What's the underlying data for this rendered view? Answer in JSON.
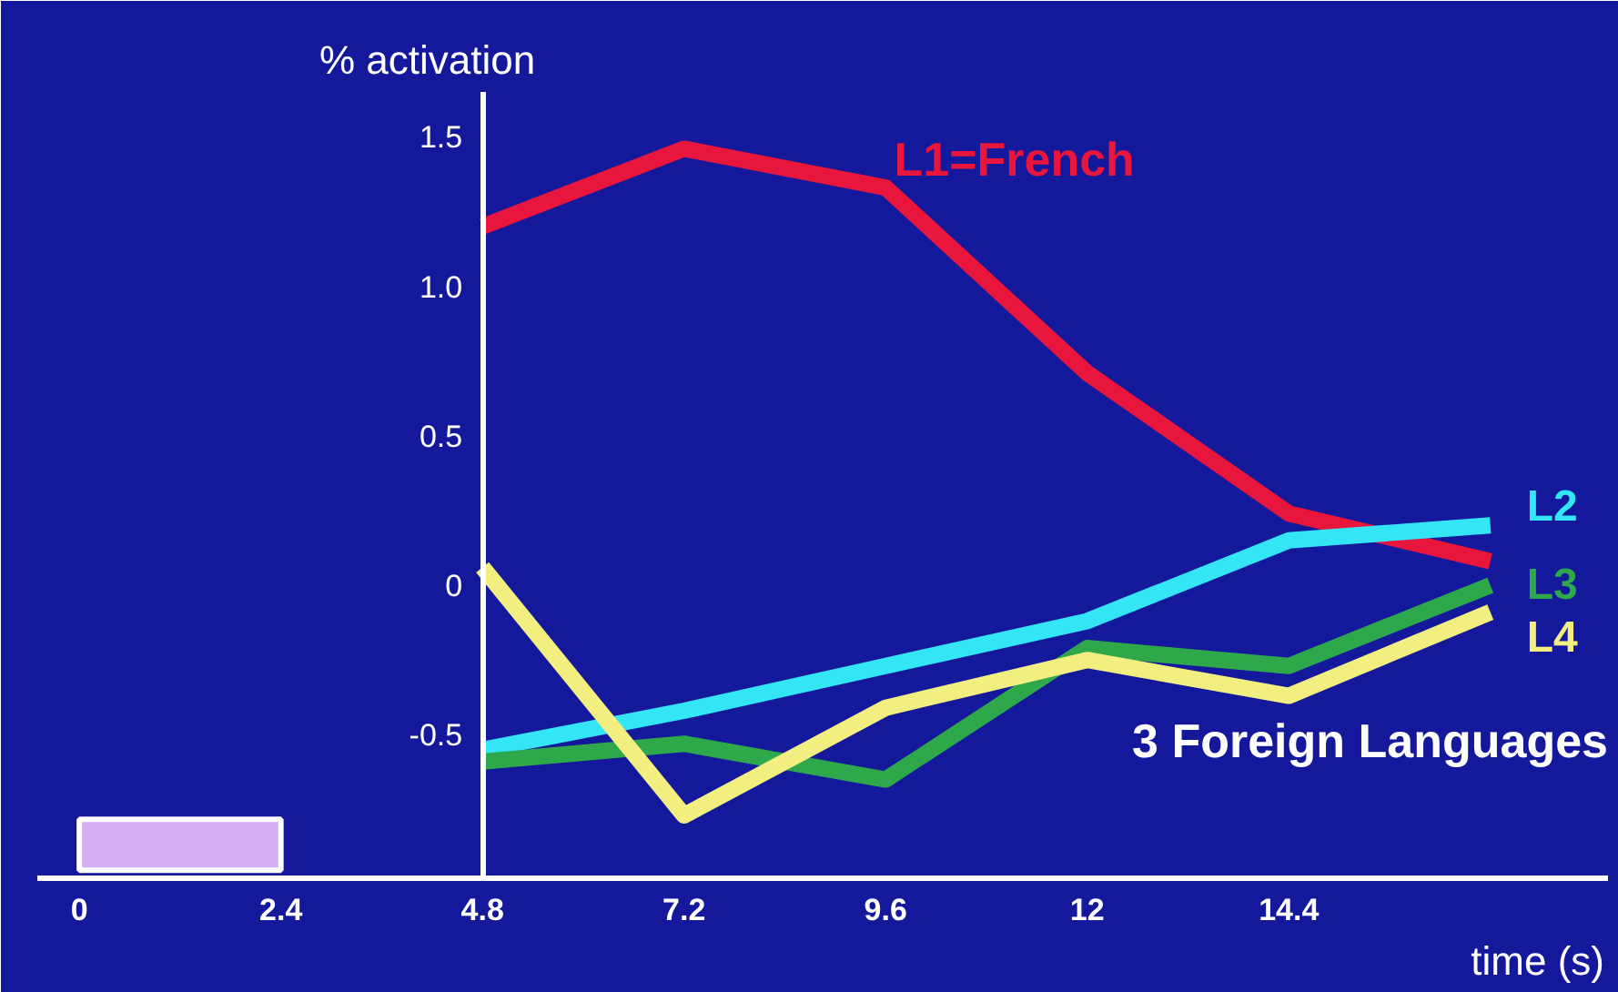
{
  "chart_data": {
    "type": "line",
    "ylabel": "% activation",
    "xlabel": "time (s)",
    "x": [
      4.8,
      7.2,
      9.6,
      12,
      14.4,
      16.8
    ],
    "series": [
      {
        "name": "L1=French",
        "color": "#e8163c",
        "values": [
          1.2,
          1.46,
          1.33,
          0.71,
          0.24,
          0.08
        ]
      },
      {
        "name": "L2",
        "color": "#33e5f5",
        "values": [
          -0.55,
          -0.42,
          -0.27,
          -0.12,
          0.15,
          0.2
        ]
      },
      {
        "name": "L3",
        "color": "#2ea84a",
        "values": [
          -0.59,
          -0.53,
          -0.65,
          -0.21,
          -0.27,
          0.0
        ]
      },
      {
        "name": "L4",
        "color": "#f2ee80",
        "values": [
          0.06,
          -0.77,
          -0.41,
          -0.25,
          -0.37,
          -0.09
        ]
      }
    ],
    "xlim": [
      -0.5,
      18.2
    ],
    "ylim": [
      -0.98,
      1.65
    ],
    "xticks": [
      0,
      2.4,
      4.8,
      7.2,
      9.6,
      12,
      14.4
    ],
    "yticks": [
      {
        "value": -0.5,
        "label": "-0.5"
      },
      0,
      0.5,
      {
        "value": 1,
        "label": "1.0"
      },
      1.5
    ],
    "bands": [
      {
        "axis": "x",
        "from": 0,
        "to": 2.4,
        "color": "#d4b0f2"
      }
    ],
    "annotations": [
      "3 Foreign Languages"
    ],
    "grid": false,
    "marker": "none",
    "line_style": "solid"
  }
}
